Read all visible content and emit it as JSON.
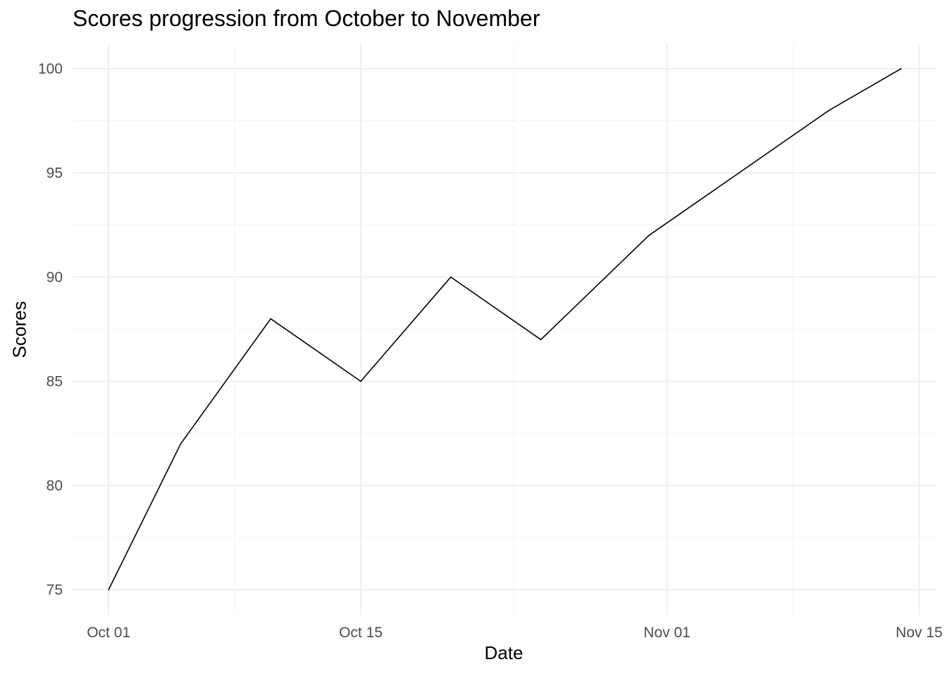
{
  "chart_data": {
    "type": "line",
    "title": "Scores progression from October to November",
    "xlabel": "Date",
    "ylabel": "Scores",
    "x_tick_labels": [
      "Oct 01",
      "Oct 15",
      "Nov 01",
      "Nov 15"
    ],
    "x_tick_dates": [
      "2023-10-01",
      "2023-10-15",
      "2023-11-01",
      "2023-11-15"
    ],
    "y_ticks": [
      75,
      80,
      85,
      90,
      95,
      100
    ],
    "ylim": [
      73.8,
      101.2
    ],
    "xlim": [
      "2023-09-29",
      "2023-11-16"
    ],
    "grid": true,
    "series": [
      {
        "color": "#000000",
        "points": [
          {
            "x": "2023-10-01",
            "y": 75
          },
          {
            "x": "2023-10-05",
            "y": 82
          },
          {
            "x": "2023-10-10",
            "y": 88
          },
          {
            "x": "2023-10-15",
            "y": 85
          },
          {
            "x": "2023-10-20",
            "y": 90
          },
          {
            "x": "2023-10-25",
            "y": 87
          },
          {
            "x": "2023-10-31",
            "y": 92
          },
          {
            "x": "2023-11-05",
            "y": 95
          },
          {
            "x": "2023-11-10",
            "y": 98
          },
          {
            "x": "2023-11-14",
            "y": 100
          }
        ]
      }
    ]
  },
  "colors": {
    "grid_major": "#ebebeb",
    "grid_minor": "#f4f4f4",
    "tick_text": "#4d4d4d",
    "line": "#000000"
  }
}
